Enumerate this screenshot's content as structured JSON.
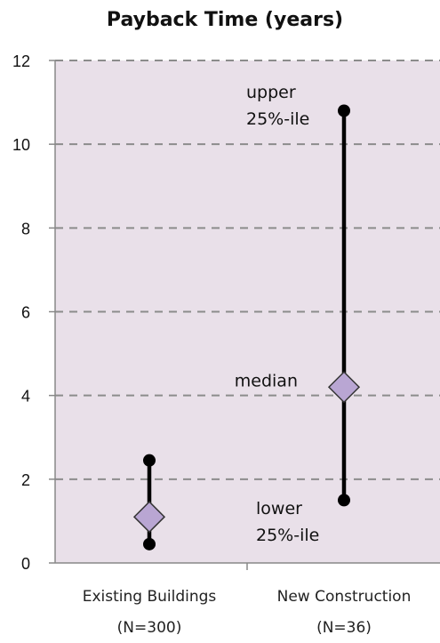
{
  "chart_data": {
    "type": "range",
    "title": "Payback Time (years)",
    "xlabel": "",
    "ylabel": "",
    "ylim": [
      0,
      12
    ],
    "yticks": [
      0,
      2,
      4,
      6,
      8,
      10,
      12
    ],
    "grid": "horizontal-dashed",
    "categories": [
      {
        "name": "Existing Buildings",
        "sub": "(N=300)",
        "lower": 0.45,
        "median": 1.1,
        "upper": 2.45
      },
      {
        "name": "New Construction",
        "sub": "(N=36)",
        "lower": 1.5,
        "median": 4.2,
        "upper": 10.8
      }
    ],
    "annotations": {
      "upper": [
        "upper",
        "25%-ile"
      ],
      "median": [
        "median"
      ],
      "lower": [
        "lower",
        "25%-ile"
      ]
    },
    "colors": {
      "plot_background": "#e9e0e9",
      "marker": "#b9a6d3",
      "line": "#000000"
    }
  }
}
